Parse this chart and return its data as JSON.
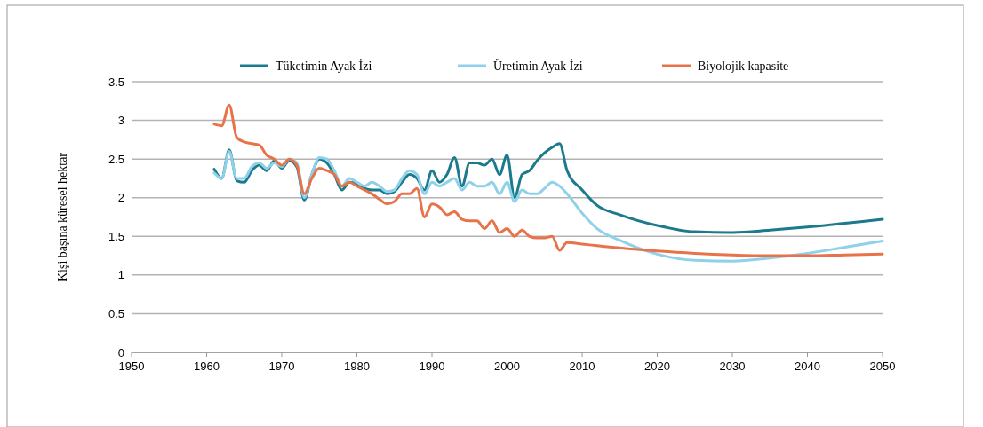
{
  "chart_data": {
    "type": "line",
    "ylabel": "Kişi başına küresel hektar",
    "x": [
      1961,
      1962,
      1963,
      1964,
      1965,
      1966,
      1967,
      1968,
      1969,
      1970,
      1971,
      1972,
      1973,
      1974,
      1975,
      1976,
      1977,
      1978,
      1979,
      1980,
      1981,
      1982,
      1983,
      1984,
      1985,
      1986,
      1987,
      1988,
      1989,
      1990,
      1991,
      1992,
      1993,
      1994,
      1995,
      1996,
      1997,
      1998,
      1999,
      2000,
      2001,
      2002,
      2003,
      2004,
      2005,
      2006,
      2007,
      2008,
      2010,
      2012,
      2015,
      2020,
      2025,
      2030,
      2035,
      2040,
      2045,
      2050
    ],
    "series": [
      {
        "name": "Tüketimin Ayak İzi",
        "color": "#1b7a8c",
        "values": [
          2.37,
          2.25,
          2.62,
          2.22,
          2.2,
          2.35,
          2.42,
          2.35,
          2.48,
          2.38,
          2.48,
          2.4,
          1.97,
          2.3,
          2.5,
          2.45,
          2.3,
          2.1,
          2.2,
          2.18,
          2.12,
          2.1,
          2.1,
          2.05,
          2.08,
          2.2,
          2.3,
          2.25,
          2.1,
          2.35,
          2.2,
          2.3,
          2.52,
          2.15,
          2.45,
          2.45,
          2.42,
          2.5,
          2.3,
          2.55,
          2.0,
          2.3,
          2.35,
          2.48,
          2.58,
          2.65,
          2.7,
          2.35,
          2.1,
          1.9,
          1.78,
          1.64,
          1.56,
          1.55,
          1.58,
          1.62,
          1.67,
          1.72
        ]
      },
      {
        "name": "Üretimin Ayak İzi",
        "color": "#8fd0ea",
        "values": [
          2.32,
          2.25,
          2.6,
          2.25,
          2.25,
          2.4,
          2.45,
          2.38,
          2.45,
          2.4,
          2.5,
          2.45,
          2.0,
          2.3,
          2.52,
          2.5,
          2.35,
          2.15,
          2.25,
          2.2,
          2.15,
          2.2,
          2.15,
          2.08,
          2.1,
          2.25,
          2.35,
          2.3,
          2.05,
          2.2,
          2.15,
          2.2,
          2.25,
          2.1,
          2.2,
          2.15,
          2.15,
          2.2,
          2.05,
          2.2,
          1.95,
          2.1,
          2.05,
          2.05,
          2.12,
          2.2,
          2.15,
          2.05,
          1.8,
          1.6,
          1.45,
          1.27,
          1.19,
          1.18,
          1.22,
          1.28,
          1.36,
          1.44
        ]
      },
      {
        "name": "Biyolojik kapasite",
        "color": "#e8734a",
        "values": [
          2.95,
          2.93,
          3.2,
          2.78,
          2.72,
          2.7,
          2.68,
          2.55,
          2.5,
          2.42,
          2.5,
          2.42,
          2.05,
          2.25,
          2.38,
          2.35,
          2.3,
          2.15,
          2.2,
          2.15,
          2.1,
          2.05,
          1.98,
          1.92,
          1.95,
          2.05,
          2.05,
          2.12,
          1.75,
          1.92,
          1.88,
          1.78,
          1.82,
          1.72,
          1.7,
          1.7,
          1.6,
          1.7,
          1.55,
          1.6,
          1.5,
          1.58,
          1.5,
          1.48,
          1.48,
          1.5,
          1.32,
          1.42,
          1.4,
          1.38,
          1.35,
          1.31,
          1.28,
          1.26,
          1.25,
          1.25,
          1.26,
          1.27
        ]
      }
    ],
    "xlim": [
      1950,
      2050
    ],
    "xticks": [
      1950,
      1960,
      1970,
      1980,
      1990,
      2000,
      2010,
      2020,
      2030,
      2040,
      2050
    ],
    "ylim": [
      0,
      3.5
    ],
    "yticks": [
      0,
      0.5,
      1,
      1.5,
      2,
      2.5,
      3,
      3.5
    ],
    "grid": "y",
    "legend": "top",
    "marker": "none",
    "line_style": "solid"
  }
}
